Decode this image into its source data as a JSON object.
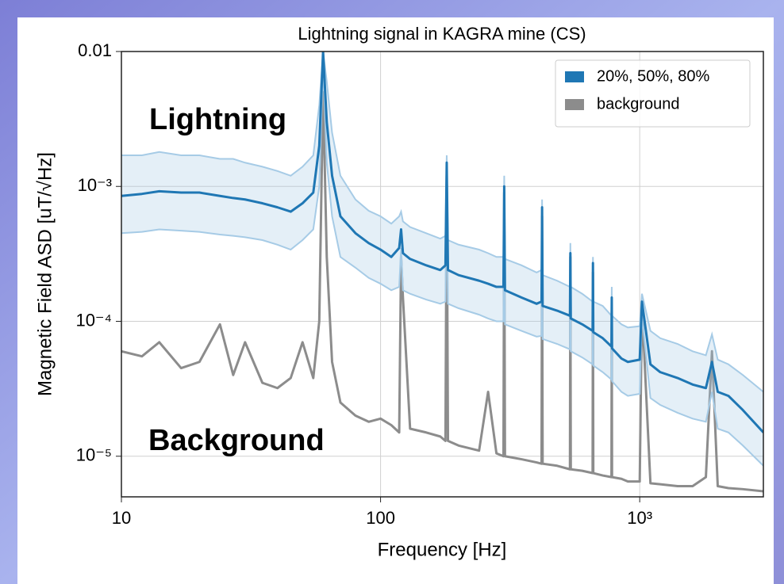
{
  "chart_data": {
    "type": "line",
    "title": "Lightning signal in KAGRA mine (CS)",
    "xlabel": "Frequency [Hz]",
    "ylabel": "Magnetic Field ASD [uT/√Hz]",
    "annotations": [
      {
        "text": "Lightning",
        "color": "#1f77b4"
      },
      {
        "text": "Background",
        "color": "#8c8c8c"
      }
    ],
    "x_scale": "log",
    "y_scale": "log",
    "grid": true,
    "legend": "upper right",
    "xlim": [
      10,
      3000
    ],
    "ylim": [
      5e-06,
      0.01
    ],
    "xticks": [
      10,
      100,
      {
        "value": 1000,
        "label": "10³"
      }
    ],
    "yticks": [
      0.01,
      {
        "value": 0.001,
        "label": "10⁻³"
      },
      {
        "value": 0.0001,
        "label": "10⁻⁴"
      },
      {
        "value": 1e-05,
        "label": "10⁻⁵"
      }
    ],
    "x": [
      10,
      12,
      14,
      17,
      20,
      24,
      27,
      30,
      35,
      40,
      45,
      50,
      55,
      58,
      60,
      62,
      65,
      70,
      80,
      90,
      100,
      110,
      118,
      120,
      122,
      130,
      150,
      170,
      178,
      180,
      182,
      200,
      240,
      260,
      280,
      298,
      300,
      302,
      350,
      400,
      418,
      420,
      422,
      480,
      538,
      540,
      542,
      600,
      658,
      660,
      662,
      720,
      778,
      780,
      782,
      850,
      900,
      1000,
      1020,
      1100,
      1200,
      1400,
      1600,
      1800,
      1900,
      2000,
      2200,
      2500,
      3000
    ],
    "series": [
      {
        "name": "20%, 50%, 80%",
        "color": "#1f77b4",
        "band_color": "#a6cbe6",
        "values": [
          0.00085,
          0.00088,
          0.00092,
          0.0009,
          0.0009,
          0.00085,
          0.00082,
          0.0008,
          0.00075,
          0.0007,
          0.00065,
          0.00075,
          0.0009,
          0.002,
          0.01,
          0.003,
          0.0012,
          0.0006,
          0.00045,
          0.00038,
          0.00034,
          0.0003,
          0.00035,
          0.00048,
          0.00032,
          0.00029,
          0.00026,
          0.00024,
          0.00026,
          0.0015,
          0.00024,
          0.00022,
          0.0002,
          0.00019,
          0.00018,
          0.00018,
          0.001,
          0.00017,
          0.00015,
          0.000135,
          0.00014,
          0.0007,
          0.00013,
          0.00012,
          0.00011,
          0.00032,
          0.000105,
          9.5e-05,
          8.5e-05,
          0.00027,
          8.3e-05,
          7.5e-05,
          6.5e-05,
          0.00015,
          6.3e-05,
          5.3e-05,
          5e-05,
          5.2e-05,
          0.00014,
          4.8e-05,
          4.2e-05,
          3.8e-05,
          3.4e-05,
          3.2e-05,
          5e-05,
          3e-05,
          2.8e-05,
          2.2e-05,
          1.5e-05
        ],
        "upper": [
          0.0017,
          0.0017,
          0.0018,
          0.0017,
          0.0017,
          0.0016,
          0.0016,
          0.0015,
          0.0014,
          0.0013,
          0.0012,
          0.0014,
          0.0017,
          0.004,
          0.01,
          0.006,
          0.0025,
          0.0012,
          0.0008,
          0.00066,
          0.0006,
          0.00053,
          0.0006,
          0.00065,
          0.00055,
          0.0005,
          0.00045,
          0.00041,
          0.00043,
          0.0017,
          0.0004,
          0.00037,
          0.00034,
          0.00032,
          0.0003,
          0.0003,
          0.0012,
          0.00029,
          0.00026,
          0.00023,
          0.00024,
          0.0008,
          0.00022,
          0.0002,
          0.00018,
          0.00038,
          0.00018,
          0.00016,
          0.00014,
          0.0003,
          0.00014,
          0.00013,
          0.00011,
          0.00018,
          0.00011,
          9.5e-05,
          9e-05,
          9.2e-05,
          0.00016,
          8.5e-05,
          7.5e-05,
          6.8e-05,
          6e-05,
          5.6e-05,
          8e-05,
          5.2e-05,
          4.8e-05,
          4e-05,
          3e-05
        ],
        "lower": [
          0.00045,
          0.00046,
          0.00048,
          0.00047,
          0.00046,
          0.00044,
          0.00043,
          0.00042,
          0.0004,
          0.00037,
          0.00034,
          0.0004,
          0.00048,
          0.001,
          0.008,
          0.0015,
          0.0006,
          0.0003,
          0.00025,
          0.00021,
          0.00019,
          0.00017,
          0.00018,
          0.00035,
          0.00017,
          0.00016,
          0.000145,
          0.000135,
          0.00014,
          0.0012,
          0.000135,
          0.000125,
          0.000112,
          0.000105,
          0.0001,
          0.0001,
          0.0008,
          9.5e-05,
          8.5e-05,
          7.7e-05,
          7.8e-05,
          0.0006,
          7.4e-05,
          6.8e-05,
          6.2e-05,
          0.00027,
          6e-05,
          5.4e-05,
          4.8e-05,
          0.00023,
          4.7e-05,
          4.2e-05,
          3.7e-05,
          0.00012,
          3.6e-05,
          3e-05,
          2.8e-05,
          2.9e-05,
          0.00011,
          2.7e-05,
          2.4e-05,
          2.1e-05,
          1.9e-05,
          1.8e-05,
          3e-05,
          1.6e-05,
          1.5e-05,
          1.2e-05,
          8.5e-06
        ]
      },
      {
        "name": "background",
        "color": "#8c8c8c",
        "values": [
          6e-05,
          5.5e-05,
          7e-05,
          4.5e-05,
          5e-05,
          9.5e-05,
          4e-05,
          7e-05,
          3.5e-05,
          3.2e-05,
          3.8e-05,
          7e-05,
          3.8e-05,
          0.0001,
          0.005,
          0.0003,
          5e-05,
          2.5e-05,
          2e-05,
          1.8e-05,
          1.9e-05,
          1.7e-05,
          1.5e-05,
          0.0003,
          0.00015,
          1.6e-05,
          1.5e-05,
          1.4e-05,
          1.3e-05,
          0.0012,
          1.3e-05,
          1.2e-05,
          1.1e-05,
          3e-05,
          1.05e-05,
          1e-05,
          0.0009,
          1e-05,
          9.5e-06,
          9e-06,
          8.8e-06,
          0.0006,
          8.8e-06,
          8.5e-06,
          8e-06,
          0.0003,
          8e-06,
          7.8e-06,
          7.5e-06,
          0.00023,
          7.5e-06,
          7.2e-06,
          7e-06,
          0.00012,
          7e-06,
          6.8e-06,
          6.5e-06,
          6.5e-06,
          0.00013,
          6.3e-06,
          6.2e-06,
          6e-06,
          6e-06,
          7e-06,
          6e-05,
          6e-06,
          5.8e-06,
          5.7e-06,
          5.5e-06
        ]
      }
    ]
  }
}
